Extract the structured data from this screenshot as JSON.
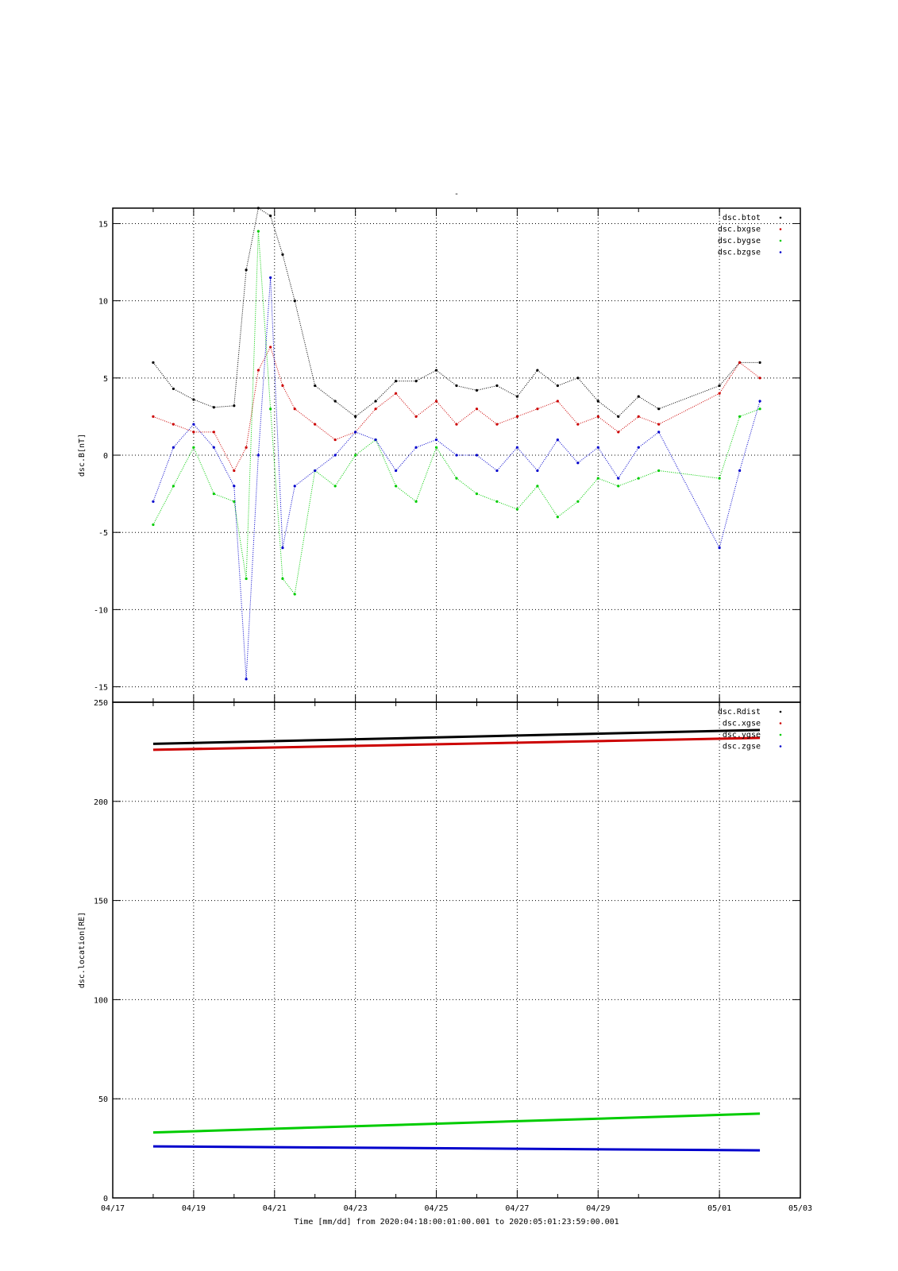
{
  "title": "-",
  "xlabel": "Time [mm/dd]  from 2020:04:18:00:01:00.001  to  2020:05:01:23:59:00.001",
  "x_ticks": [
    "04/17",
    "04/19",
    "04/21",
    "04/23",
    "04/25",
    "04/27",
    "04/29",
    "05/01",
    "05/03"
  ],
  "colors": {
    "black": "#000000",
    "red": "#cc0000",
    "green": "#00cc00",
    "blue": "#0000cc",
    "grid": "#000000"
  },
  "chart_data": [
    {
      "type": "scatter",
      "ylabel": "dsc.B[nT]",
      "xlim": [
        "04/17",
        "05/03"
      ],
      "ylim": [
        -16,
        16
      ],
      "y_ticks": [
        "15",
        "10",
        "5",
        "0",
        "-5",
        "-10",
        "-15"
      ],
      "grid": true,
      "legend_position": "top-right",
      "x": [
        "04/18.0",
        "04/18.5",
        "04/19.0",
        "04/19.5",
        "04/20.0",
        "04/20.3",
        "04/20.6",
        "04/20.9",
        "04/21.2",
        "04/21.5",
        "04/22.0",
        "04/22.5",
        "04/23.0",
        "04/23.5",
        "04/24.0",
        "04/24.5",
        "04/25.0",
        "04/25.5",
        "04/26.0",
        "04/26.5",
        "04/27.0",
        "04/27.5",
        "04/28.0",
        "04/28.5",
        "04/29.0",
        "04/29.5",
        "04/30.0",
        "04/30.5",
        "05/01.0",
        "05/01.5",
        "05/02.0"
      ],
      "series": [
        {
          "name": "dsc.btot",
          "color": "#000000",
          "values": [
            6,
            4.3,
            3.6,
            3.1,
            3.2,
            12,
            16,
            15.5,
            13,
            10,
            4.5,
            3.5,
            2.5,
            3.5,
            4.8,
            4.8,
            5.5,
            4.5,
            4.2,
            4.5,
            3.8,
            5.5,
            4.5,
            5.0,
            3.5,
            2.5,
            3.8,
            3.0,
            4.5,
            6.0,
            6.0
          ]
        },
        {
          "name": "dsc.bxgse",
          "color": "#cc0000",
          "values": [
            2.5,
            2.0,
            1.5,
            1.5,
            -1.0,
            0.5,
            5.5,
            7.0,
            4.5,
            3.0,
            2.0,
            1.0,
            1.5,
            3.0,
            4.0,
            2.5,
            3.5,
            2.0,
            3.0,
            2.0,
            2.5,
            3.0,
            3.5,
            2.0,
            2.5,
            1.5,
            2.5,
            2.0,
            4.0,
            6.0,
            5.0
          ]
        },
        {
          "name": "dsc.bygse",
          "color": "#00cc00",
          "values": [
            -4.5,
            -2.0,
            0.5,
            -2.5,
            -3.0,
            -8.0,
            14.5,
            3.0,
            -8.0,
            -9.0,
            -1.0,
            -2.0,
            0.0,
            1.0,
            -2.0,
            -3.0,
            0.5,
            -1.5,
            -2.5,
            -3.0,
            -3.5,
            -2.0,
            -4.0,
            -3.0,
            -1.5,
            -2.0,
            -1.5,
            -1.0,
            -1.5,
            2.5,
            3.0
          ]
        },
        {
          "name": "dsc.bzgse",
          "color": "#0000cc",
          "values": [
            -3.0,
            0.5,
            2.0,
            0.5,
            -2.0,
            -14.5,
            0.0,
            11.5,
            -6.0,
            -2.0,
            -1.0,
            0.0,
            1.5,
            1.0,
            -1.0,
            0.5,
            1.0,
            0.0,
            0.0,
            -1.0,
            0.5,
            -1.0,
            1.0,
            -0.5,
            0.5,
            -1.5,
            0.5,
            1.5,
            -6.0,
            -1.0,
            3.5
          ]
        }
      ]
    },
    {
      "type": "line",
      "ylabel": "dsc.location[RE]",
      "xlim": [
        "04/17",
        "05/03"
      ],
      "ylim": [
        0,
        250
      ],
      "y_ticks": [
        "250",
        "200",
        "150",
        "100",
        "50",
        "0"
      ],
      "grid": true,
      "legend_position": "top-right",
      "x": [
        "04/18.0",
        "05/02.0"
      ],
      "series": [
        {
          "name": "dsc.Rdist",
          "color": "#000000",
          "values": [
            229,
            236
          ]
        },
        {
          "name": "dsc.xgse",
          "color": "#cc0000",
          "values": [
            226,
            232
          ]
        },
        {
          "name": "dsc.ygse",
          "color": "#00cc00",
          "values": [
            33,
            42.5
          ]
        },
        {
          "name": "dsc.zgse",
          "color": "#0000cc",
          "values": [
            26,
            24
          ]
        }
      ]
    }
  ]
}
